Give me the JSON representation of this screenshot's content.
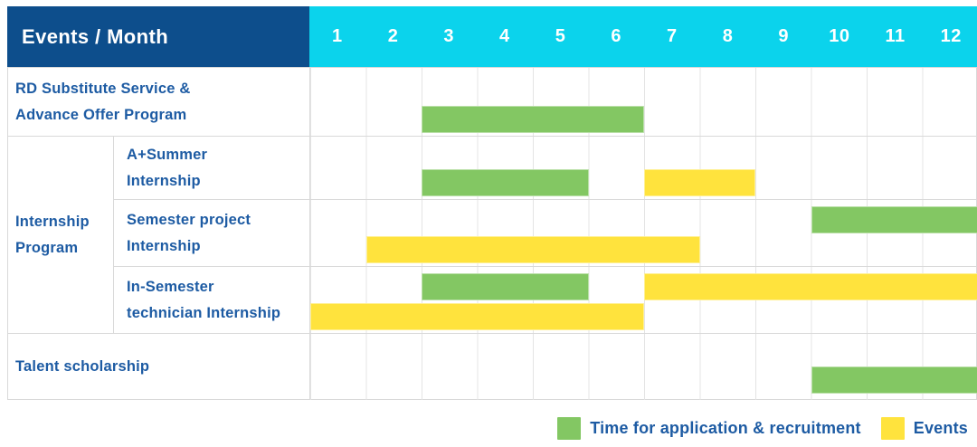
{
  "header": {
    "label": "Events / Month"
  },
  "chart_data": {
    "type": "table",
    "subtype": "gantt",
    "title": "Events / Month",
    "x": {
      "label": "Month",
      "ticks": [
        "1",
        "2",
        "3",
        "4",
        "5",
        "6",
        "7",
        "8",
        "9",
        "10",
        "11",
        "12"
      ],
      "range": [
        1,
        12
      ]
    },
    "grid": true,
    "legend_position": "bottom-right",
    "legend": [
      {
        "name": "Time for application & recruitment",
        "series": "recruitment",
        "color": "#83c763"
      },
      {
        "name": "Events",
        "series": "events",
        "color": "#ffe33d"
      }
    ],
    "rows": [
      {
        "group": "",
        "label": "RD Substitute Service & Advance Offer Program",
        "bars": [
          {
            "series": "recruitment",
            "start_month": 3,
            "end_month": 6,
            "lane": 1
          }
        ]
      },
      {
        "group": "Internship Program",
        "label": "A+Summer Internship",
        "bars": [
          {
            "series": "recruitment",
            "start_month": 3,
            "end_month": 5,
            "lane": 1
          },
          {
            "series": "events",
            "start_month": 7,
            "end_month": 8,
            "lane": 1
          }
        ]
      },
      {
        "group": "Internship Program",
        "label": "Semester project Internship",
        "bars": [
          {
            "series": "recruitment",
            "start_month": 10,
            "end_month": 12,
            "lane": 1
          },
          {
            "series": "events",
            "start_month": 2,
            "end_month": 7,
            "lane": 2
          }
        ]
      },
      {
        "group": "Internship Program",
        "label": "In-Semester technician Internship",
        "bars": [
          {
            "series": "recruitment",
            "start_month": 3,
            "end_month": 5,
            "lane": 1
          },
          {
            "series": "events",
            "start_month": 7,
            "end_month": 12,
            "lane": 1
          },
          {
            "series": "events",
            "start_month": 1,
            "end_month": 6,
            "lane": 2
          }
        ]
      },
      {
        "group": "",
        "label": "Talent scholarship",
        "bars": [
          {
            "series": "recruitment",
            "start_month": 10,
            "end_month": 12,
            "lane": 1
          }
        ]
      }
    ]
  },
  "display": {
    "row_labels": [
      "RD Substitute Service &\nAdvance Offer Program",
      "A+Summer\nInternship",
      "Semester project\nInternship",
      "In-Semester\ntechnician Internship",
      "Talent scholarship"
    ],
    "group_label": "Internship\nProgram"
  },
  "colors": {
    "header_bg": "#0d4e8c",
    "month_header_bg": "#0bd3ec",
    "header_text": "#ffffff",
    "label_text": "#1d5ba3",
    "recruitment": "#83c763",
    "events": "#ffe33d"
  }
}
